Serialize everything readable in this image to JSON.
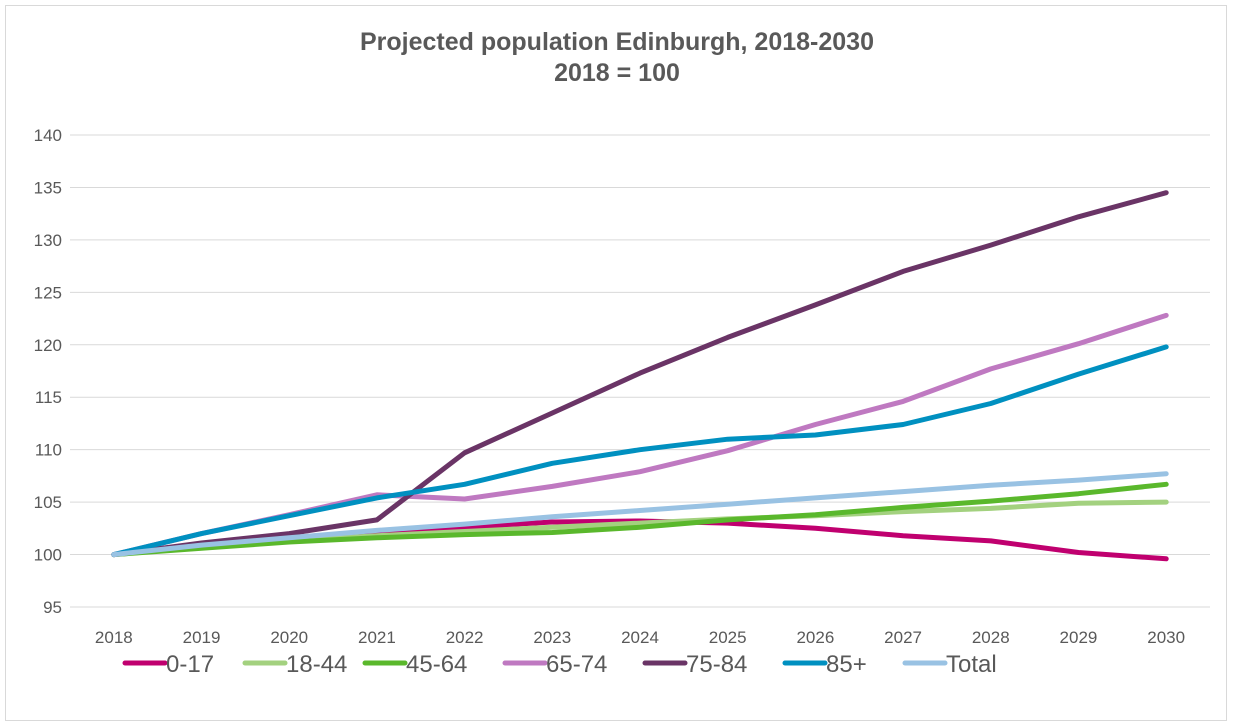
{
  "chart_data": {
    "type": "line",
    "title": "Projected population Edinburgh, 2018-2030",
    "subtitle": "2018 = 100",
    "xlabel": "",
    "ylabel": "",
    "x": [
      "2018",
      "2019",
      "2020",
      "2021",
      "2022",
      "2023",
      "2024",
      "2025",
      "2026",
      "2027",
      "2028",
      "2029",
      "2030"
    ],
    "ylim": [
      95,
      140
    ],
    "yticks": [
      95,
      100,
      105,
      110,
      115,
      120,
      125,
      130,
      135,
      140
    ],
    "grid": true,
    "legend_position": "bottom",
    "series": [
      {
        "name": "0-17",
        "color": "#c0006f",
        "values": [
          100,
          100.8,
          101.6,
          102.2,
          102.6,
          103.1,
          103.2,
          103.0,
          102.5,
          101.8,
          101.3,
          100.2,
          99.6
        ]
      },
      {
        "name": "18-44",
        "color": "#a3d17f",
        "values": [
          100,
          100.7,
          101.3,
          101.8,
          102.2,
          102.6,
          103.0,
          103.4,
          103.7,
          104.1,
          104.4,
          104.9,
          105.0
        ]
      },
      {
        "name": "45-64",
        "color": "#5ab82c",
        "values": [
          100,
          100.6,
          101.2,
          101.6,
          101.9,
          102.1,
          102.6,
          103.3,
          103.8,
          104.5,
          105.1,
          105.8,
          106.7
        ]
      },
      {
        "name": "65-74",
        "color": "#bf79c1",
        "values": [
          100,
          102.0,
          103.8,
          105.7,
          105.3,
          106.5,
          107.9,
          109.9,
          112.4,
          114.6,
          117.7,
          120.1,
          122.8
        ]
      },
      {
        "name": "75-84",
        "color": "#6a3466",
        "values": [
          100,
          101.1,
          102.0,
          103.3,
          109.7,
          113.5,
          117.3,
          120.7,
          123.8,
          127.0,
          129.5,
          132.2,
          134.5
        ]
      },
      {
        "name": "85+",
        "color": "#0090c0",
        "values": [
          100,
          102.0,
          103.7,
          105.4,
          106.7,
          108.7,
          110.0,
          111.0,
          111.4,
          112.4,
          114.4,
          117.2,
          119.8
        ]
      },
      {
        "name": "Total",
        "color": "#99c2e3",
        "values": [
          100,
          100.9,
          101.6,
          102.3,
          102.9,
          103.6,
          104.2,
          104.8,
          105.4,
          106.0,
          106.6,
          107.1,
          107.7
        ]
      }
    ]
  }
}
